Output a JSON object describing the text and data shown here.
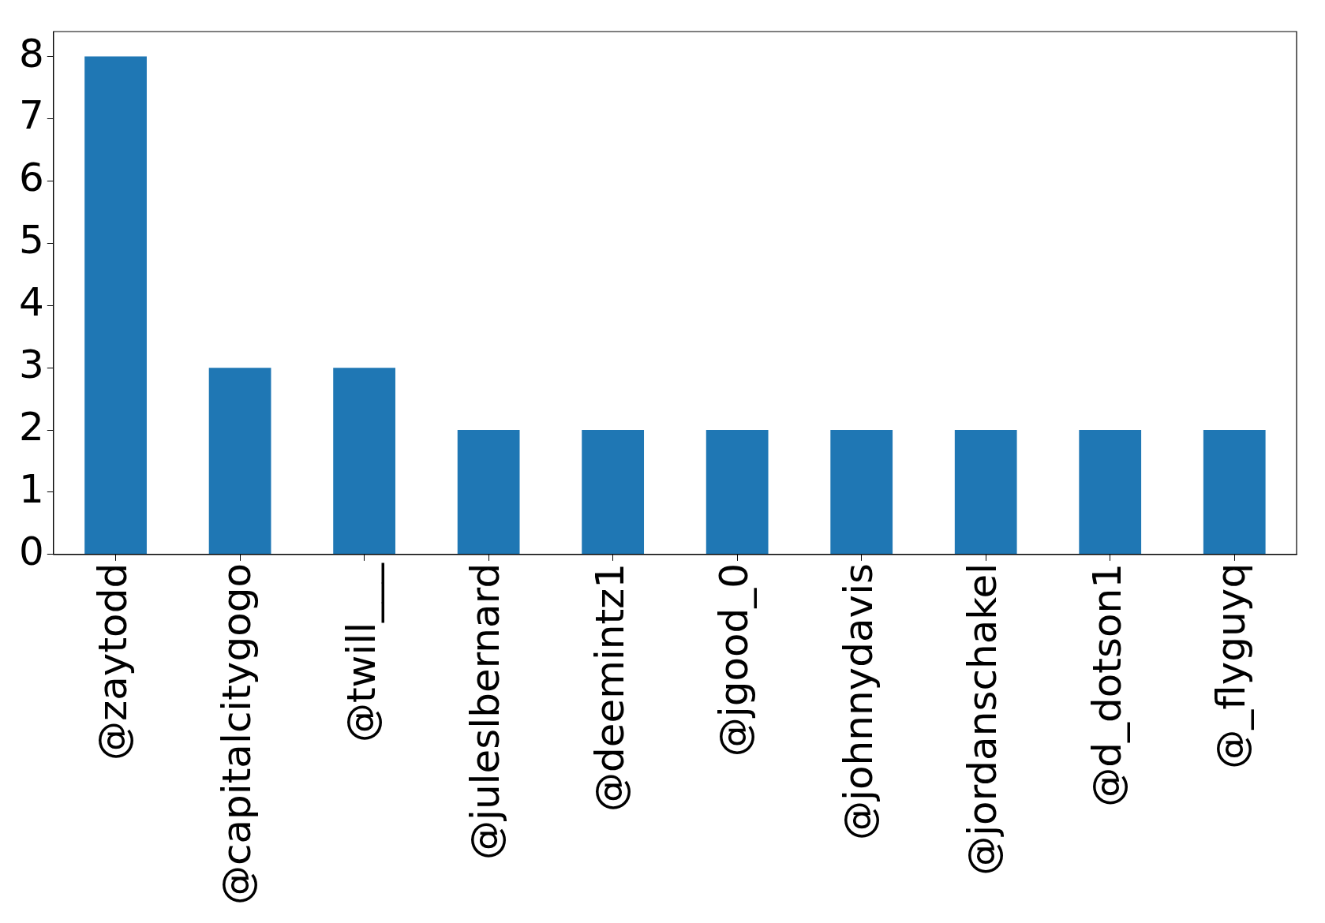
{
  "chart_data": {
    "type": "bar",
    "categories": [
      "@zaytodd",
      "@capitalcitygogo",
      "@twill___",
      "@juleslbernard",
      "@deemintz1",
      "@jgood_0",
      "@johnnydavis",
      "@jordanschakel",
      "@d_dotson1",
      "@_flyguyq"
    ],
    "values": [
      8,
      3,
      3,
      2,
      2,
      2,
      2,
      2,
      2,
      2
    ],
    "color": "#1f77b4",
    "ylim": [
      0,
      8.4
    ],
    "yticks": [
      0,
      1,
      2,
      3,
      4,
      5,
      6,
      7,
      8
    ],
    "grid": false,
    "legend": false
  }
}
